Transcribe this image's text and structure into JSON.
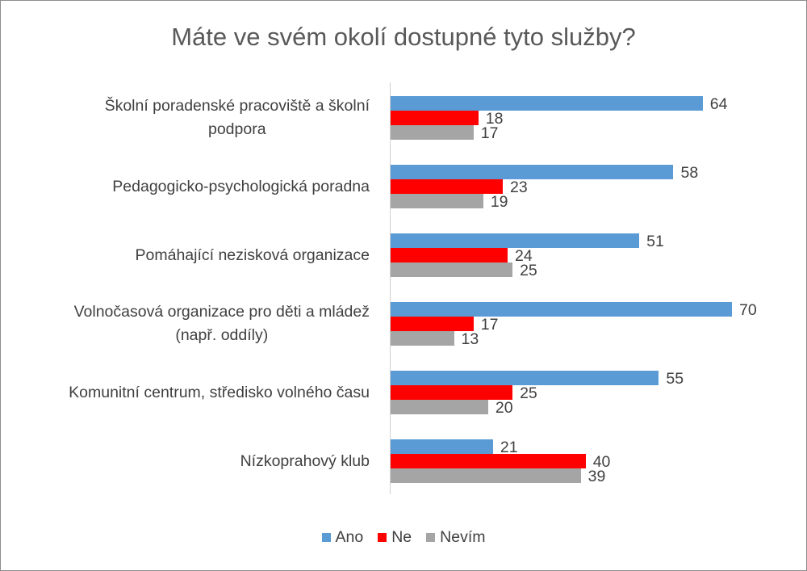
{
  "chart_data": {
    "type": "bar",
    "orientation": "horizontal",
    "title": "Máte ve svém okolí dostupné tyto služby?",
    "categories": [
      "Školní poradenské pracoviště a školní\npodpora",
      "Pedagogicko-psychologická poradna",
      "Pomáhající nezisková organizace",
      "Volnočasová organizace pro děti a mládež\n(např. oddíly)",
      "Komunitní centrum, středisko volného času",
      "Nízkoprahový klub"
    ],
    "series": [
      {
        "name": "Ano",
        "color": "#5B9BD5",
        "values": [
          64,
          58,
          51,
          70,
          55,
          21
        ]
      },
      {
        "name": "Ne",
        "color": "#FF0000",
        "values": [
          18,
          23,
          24,
          17,
          25,
          40
        ]
      },
      {
        "name": "Nevím",
        "color": "#A5A5A5",
        "values": [
          17,
          19,
          25,
          13,
          20,
          39
        ]
      }
    ],
    "xlim": [
      0,
      70
    ],
    "grid": false,
    "data_labels": true,
    "legend_position": "bottom"
  }
}
